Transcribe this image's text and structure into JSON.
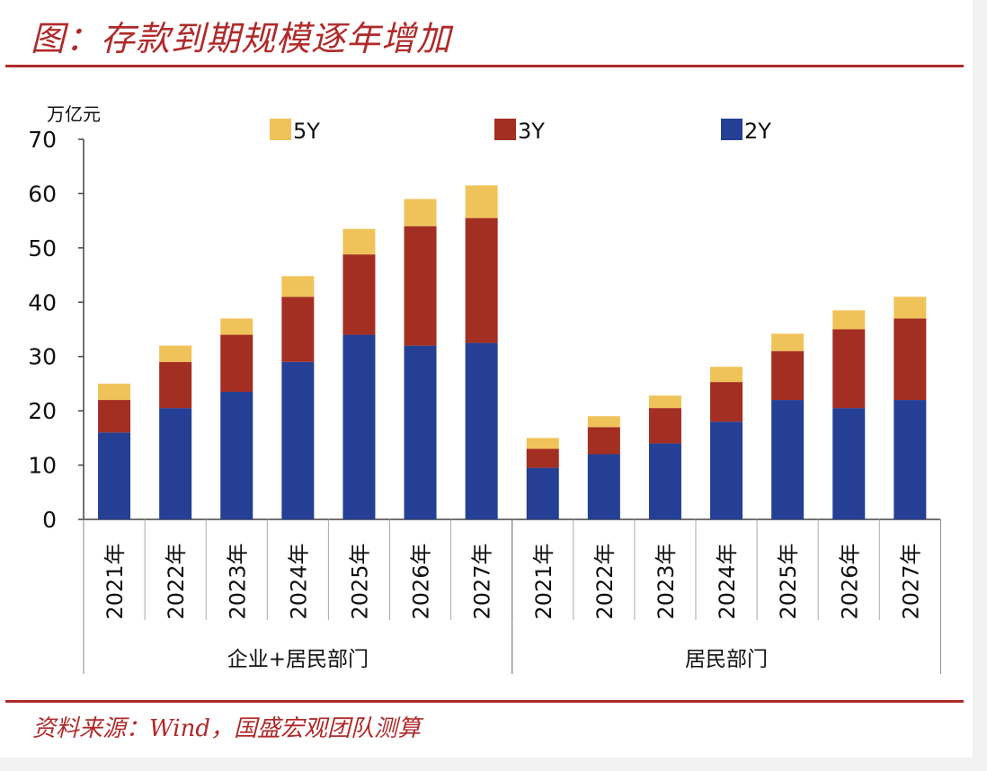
{
  "figure": {
    "title": "图：存款到期规模逐年增加",
    "source": "资料来源：Wind，国盛宏观团队测算"
  },
  "colors": {
    "accent": "#b02a2a",
    "2Y": "#243f94",
    "3Y": "#a32e22",
    "5Y": "#f0c35a"
  },
  "chart_data": {
    "type": "bar",
    "stacked": true,
    "unit_label": "万亿元",
    "ylim": [
      0,
      70
    ],
    "yticks": [
      0,
      10,
      20,
      30,
      40,
      50,
      60,
      70
    ],
    "grid": false,
    "legend_position": "top",
    "groups": [
      {
        "label": "企业+居民部门",
        "categories": [
          "2021年",
          "2022年",
          "2023年",
          "2024年",
          "2025年",
          "2026年",
          "2027年"
        ]
      },
      {
        "label": "居民部门",
        "categories": [
          "2021年",
          "2022年",
          "2023年",
          "2024年",
          "2025年",
          "2026年",
          "2027年"
        ]
      }
    ],
    "series": [
      {
        "name": "2Y",
        "values": [
          16,
          20.5,
          23.5,
          29,
          34,
          32,
          32.5,
          9.5,
          12,
          14,
          18,
          22,
          20.5,
          22
        ]
      },
      {
        "name": "3Y",
        "values": [
          6,
          8.5,
          10.5,
          12,
          14.8,
          22,
          23,
          3.5,
          5,
          6.5,
          7.3,
          9,
          14.5,
          15
        ]
      },
      {
        "name": "5Y",
        "values": [
          3,
          3,
          3,
          3.8,
          4.7,
          5,
          6,
          2,
          2,
          2.3,
          2.8,
          3.2,
          3.5,
          4
        ]
      }
    ],
    "legend_order": [
      "5Y",
      "3Y",
      "2Y"
    ]
  }
}
